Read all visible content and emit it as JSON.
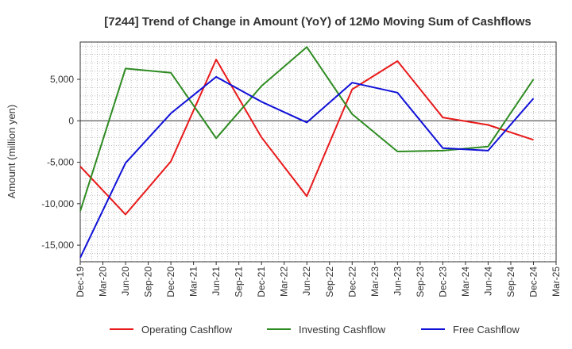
{
  "chart_data": {
    "type": "line",
    "title": "[7244]  Trend of Change in Amount (YoY) of 12Mo Moving Sum of Cashflows",
    "xlabel": "",
    "ylabel": "Amount (million yen)",
    "categories": [
      "Dec-19",
      "Mar-20",
      "Jun-20",
      "Sep-20",
      "Dec-20",
      "Mar-21",
      "Jun-21",
      "Sep-21",
      "Dec-21",
      "Mar-22",
      "Jun-22",
      "Sep-22",
      "Dec-22",
      "Mar-23",
      "Jun-23",
      "Sep-23",
      "Dec-23",
      "Mar-24",
      "Jun-24",
      "Sep-24",
      "Dec-24",
      "Mar-25"
    ],
    "ylim": [
      -17000,
      9500
    ],
    "yticks": [
      5000,
      0,
      -5000,
      -10000,
      -15000
    ],
    "ytick_labels": [
      "5,000",
      "0",
      "-5,000",
      "-10,000",
      "-15,000"
    ],
    "grid": true,
    "legend_position": "bottom",
    "series": [
      {
        "name": "Operating Cashflow",
        "color": "#e8191a",
        "values": [
          -5500,
          null,
          -11300,
          null,
          -4900,
          null,
          7400,
          null,
          -2000,
          null,
          -9100,
          null,
          3800,
          null,
          7200,
          null,
          400,
          null,
          -500,
          null,
          -2300,
          null
        ]
      },
      {
        "name": "Investing Cashflow",
        "color": "#2e8b22",
        "values": [
          -10900,
          null,
          6300,
          null,
          5800,
          null,
          -2100,
          null,
          4200,
          null,
          8900,
          null,
          800,
          null,
          -3700,
          null,
          -3600,
          null,
          -3100,
          null,
          5000,
          null
        ]
      },
      {
        "name": "Free Cashflow",
        "color": "#1010d8",
        "values": [
          -16500,
          null,
          -5100,
          null,
          900,
          null,
          5300,
          null,
          2300,
          null,
          -200,
          null,
          4600,
          null,
          3400,
          null,
          -3300,
          null,
          -3600,
          null,
          2700,
          null
        ]
      }
    ]
  }
}
